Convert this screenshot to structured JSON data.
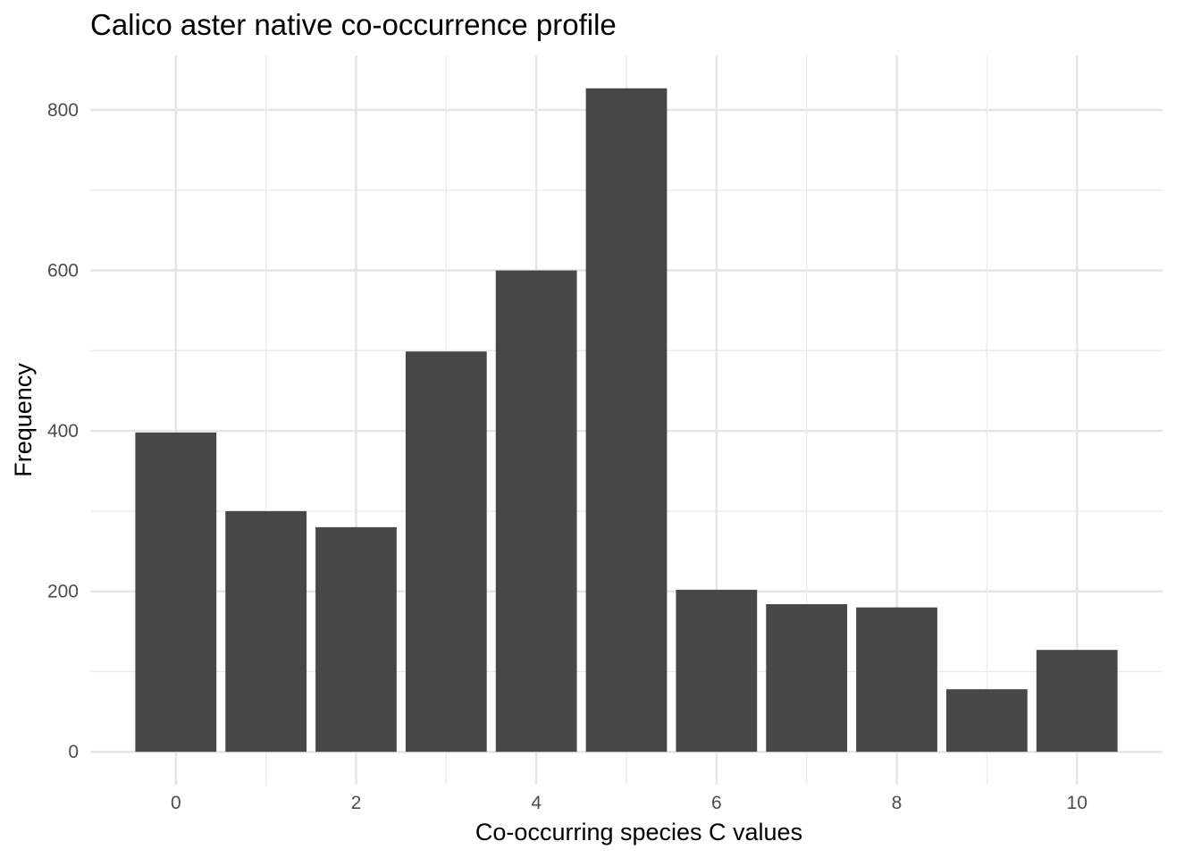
{
  "chart_data": {
    "type": "bar",
    "title": "Calico aster native co-occurrence profile",
    "xlabel": "Co-occurring species C values",
    "ylabel": "Frequency",
    "x": [
      0,
      1,
      2,
      3,
      4,
      5,
      6,
      7,
      8,
      9,
      10
    ],
    "values": [
      398,
      300,
      280,
      499,
      600,
      827,
      202,
      184,
      180,
      78,
      127
    ],
    "x_ticks": [
      0,
      2,
      4,
      6,
      8,
      10
    ],
    "y_ticks": [
      0,
      200,
      400,
      600,
      800
    ],
    "xlim": [
      -0.95,
      10.95
    ],
    "ylim": [
      -41,
      868
    ],
    "grid": true,
    "legend": "none",
    "bar_color": "#474747"
  }
}
